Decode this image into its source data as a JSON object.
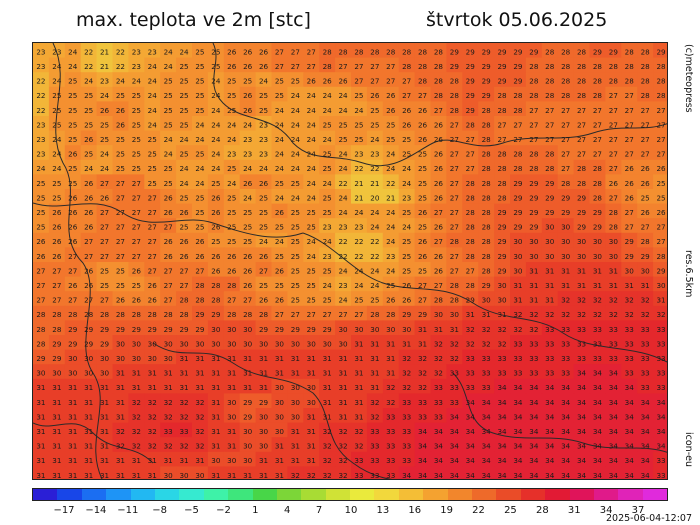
{
  "title": "max. teplota ve 2m [stc]",
  "date": "štvrtok 05.06.2025",
  "side_labels": {
    "copyright": "(c)meteopress",
    "resolution": "res.6.5km",
    "model": "icon-eu"
  },
  "timestamp": "2025-06-04-12:07",
  "map": {
    "cols": 40,
    "rows": 30,
    "grid_values": [
      [
        23,
        23,
        24,
        22,
        21,
        22,
        23,
        23,
        24,
        24,
        25,
        25,
        26,
        26,
        26,
        27,
        27,
        27,
        28,
        28,
        28,
        28,
        28,
        28,
        28,
        28,
        29,
        29,
        29,
        29,
        29,
        29,
        28,
        28,
        28,
        29,
        29,
        28,
        28,
        29
      ],
      [
        23,
        24,
        24,
        22,
        21,
        22,
        23,
        24,
        24,
        25,
        25,
        25,
        26,
        26,
        26,
        27,
        27,
        27,
        28,
        27,
        27,
        27,
        27,
        28,
        28,
        28,
        29,
        29,
        29,
        29,
        29,
        28,
        28,
        28,
        28,
        28,
        28,
        28,
        28,
        28
      ],
      [
        22,
        24,
        25,
        24,
        23,
        24,
        24,
        24,
        25,
        25,
        25,
        24,
        25,
        25,
        24,
        25,
        25,
        26,
        26,
        26,
        27,
        27,
        27,
        27,
        28,
        28,
        28,
        29,
        29,
        29,
        29,
        28,
        28,
        28,
        28,
        28,
        28,
        28,
        28,
        28
      ],
      [
        22,
        25,
        25,
        25,
        24,
        25,
        25,
        24,
        25,
        25,
        25,
        24,
        25,
        26,
        25,
        25,
        24,
        24,
        24,
        24,
        25,
        26,
        26,
        27,
        27,
        28,
        28,
        29,
        29,
        28,
        28,
        28,
        28,
        28,
        28,
        28,
        27,
        27,
        28,
        28
      ],
      [
        22,
        25,
        25,
        25,
        26,
        26,
        25,
        24,
        25,
        25,
        25,
        24,
        25,
        26,
        25,
        24,
        24,
        24,
        24,
        24,
        24,
        25,
        26,
        26,
        26,
        27,
        28,
        29,
        28,
        28,
        28,
        27,
        27,
        27,
        27,
        27,
        27,
        27,
        27,
        27
      ],
      [
        23,
        25,
        25,
        25,
        25,
        26,
        25,
        24,
        25,
        25,
        24,
        24,
        24,
        24,
        23,
        24,
        24,
        24,
        25,
        25,
        25,
        25,
        25,
        26,
        26,
        26,
        27,
        28,
        28,
        27,
        27,
        27,
        27,
        27,
        27,
        27,
        27,
        27,
        27,
        27
      ],
      [
        23,
        24,
        25,
        26,
        25,
        25,
        25,
        25,
        24,
        24,
        24,
        24,
        24,
        23,
        23,
        24,
        24,
        24,
        24,
        25,
        25,
        24,
        25,
        25,
        26,
        26,
        27,
        27,
        28,
        27,
        27,
        27,
        27,
        27,
        27,
        27,
        27,
        27,
        27,
        27
      ],
      [
        23,
        24,
        26,
        25,
        24,
        25,
        25,
        25,
        24,
        25,
        25,
        24,
        23,
        23,
        23,
        24,
        24,
        24,
        25,
        24,
        23,
        23,
        24,
        25,
        25,
        26,
        27,
        27,
        28,
        28,
        28,
        28,
        28,
        27,
        27,
        27,
        27,
        27,
        27,
        27
      ],
      [
        24,
        24,
        25,
        24,
        24,
        25,
        25,
        25,
        25,
        24,
        24,
        24,
        25,
        24,
        24,
        24,
        24,
        24,
        25,
        24,
        22,
        22,
        24,
        24,
        25,
        26,
        27,
        27,
        28,
        28,
        28,
        28,
        28,
        27,
        28,
        28,
        27,
        26,
        26,
        26
      ],
      [
        25,
        25,
        25,
        26,
        27,
        27,
        27,
        25,
        25,
        24,
        24,
        25,
        24,
        26,
        26,
        25,
        25,
        24,
        24,
        22,
        21,
        21,
        22,
        24,
        25,
        26,
        27,
        28,
        28,
        28,
        29,
        29,
        29,
        28,
        28,
        28,
        26,
        26,
        26,
        25
      ],
      [
        25,
        25,
        26,
        26,
        26,
        27,
        27,
        27,
        26,
        25,
        25,
        26,
        25,
        24,
        25,
        24,
        24,
        24,
        25,
        24,
        21,
        20,
        21,
        23,
        25,
        26,
        27,
        28,
        28,
        28,
        29,
        29,
        29,
        29,
        29,
        28,
        27,
        26,
        25,
        25
      ],
      [
        25,
        26,
        26,
        26,
        27,
        27,
        27,
        27,
        26,
        26,
        25,
        26,
        25,
        25,
        25,
        26,
        25,
        25,
        25,
        24,
        24,
        24,
        24,
        25,
        26,
        27,
        27,
        28,
        28,
        29,
        29,
        29,
        29,
        29,
        29,
        29,
        28,
        27,
        26,
        26
      ],
      [
        25,
        26,
        26,
        26,
        27,
        27,
        27,
        27,
        27,
        25,
        25,
        26,
        25,
        25,
        25,
        25,
        25,
        25,
        23,
        23,
        23,
        24,
        24,
        24,
        25,
        26,
        27,
        28,
        28,
        29,
        29,
        29,
        30,
        30,
        29,
        29,
        28,
        27,
        27,
        27
      ],
      [
        26,
        26,
        26,
        27,
        27,
        27,
        27,
        27,
        26,
        26,
        26,
        25,
        25,
        25,
        24,
        24,
        25,
        24,
        24,
        22,
        22,
        22,
        24,
        25,
        26,
        27,
        28,
        28,
        28,
        29,
        30,
        30,
        30,
        30,
        30,
        30,
        30,
        29,
        28,
        27
      ],
      [
        26,
        26,
        27,
        27,
        27,
        27,
        27,
        27,
        26,
        26,
        26,
        26,
        26,
        26,
        26,
        25,
        25,
        24,
        23,
        22,
        22,
        22,
        23,
        25,
        26,
        26,
        27,
        28,
        28,
        29,
        30,
        30,
        30,
        30,
        30,
        30,
        30,
        29,
        29,
        28
      ],
      [
        27,
        27,
        27,
        26,
        25,
        25,
        26,
        27,
        27,
        27,
        27,
        26,
        26,
        26,
        27,
        26,
        25,
        25,
        25,
        24,
        24,
        24,
        24,
        25,
        25,
        26,
        27,
        27,
        28,
        29,
        30,
        31,
        31,
        31,
        31,
        31,
        31,
        30,
        30,
        29
      ],
      [
        27,
        27,
        26,
        26,
        25,
        25,
        25,
        26,
        27,
        27,
        28,
        28,
        28,
        26,
        25,
        25,
        25,
        25,
        24,
        23,
        24,
        24,
        25,
        26,
        27,
        27,
        28,
        28,
        29,
        30,
        31,
        31,
        31,
        31,
        31,
        31,
        31,
        31,
        31,
        30
      ],
      [
        27,
        27,
        27,
        27,
        27,
        26,
        26,
        26,
        27,
        28,
        28,
        28,
        27,
        27,
        26,
        26,
        25,
        25,
        25,
        24,
        25,
        25,
        26,
        26,
        27,
        28,
        28,
        29,
        30,
        30,
        31,
        31,
        31,
        32,
        32,
        32,
        32,
        32,
        32,
        31
      ],
      [
        28,
        28,
        28,
        28,
        28,
        28,
        28,
        28,
        28,
        28,
        29,
        29,
        28,
        28,
        28,
        27,
        27,
        27,
        27,
        27,
        27,
        28,
        28,
        29,
        29,
        30,
        30,
        31,
        31,
        31,
        32,
        32,
        32,
        32,
        32,
        32,
        32,
        32,
        32,
        32
      ],
      [
        28,
        28,
        29,
        29,
        29,
        29,
        29,
        29,
        29,
        29,
        29,
        30,
        30,
        30,
        29,
        29,
        29,
        29,
        29,
        30,
        30,
        30,
        30,
        30,
        31,
        31,
        31,
        32,
        32,
        32,
        32,
        32,
        33,
        33,
        33,
        33,
        33,
        33,
        33,
        33
      ],
      [
        28,
        29,
        29,
        29,
        29,
        30,
        30,
        30,
        30,
        30,
        30,
        30,
        30,
        30,
        30,
        30,
        30,
        30,
        30,
        30,
        31,
        31,
        31,
        31,
        31,
        32,
        32,
        32,
        32,
        32,
        33,
        33,
        33,
        33,
        33,
        33,
        33,
        33,
        33,
        33
      ],
      [
        29,
        29,
        30,
        30,
        30,
        30,
        30,
        30,
        30,
        31,
        31,
        31,
        31,
        31,
        31,
        31,
        31,
        31,
        31,
        31,
        31,
        31,
        31,
        32,
        32,
        32,
        32,
        33,
        33,
        33,
        33,
        33,
        33,
        33,
        33,
        33,
        33,
        33,
        33,
        33
      ],
      [
        30,
        30,
        30,
        30,
        30,
        31,
        31,
        31,
        31,
        31,
        31,
        31,
        31,
        31,
        31,
        31,
        31,
        31,
        31,
        31,
        31,
        31,
        31,
        32,
        32,
        32,
        33,
        33,
        33,
        33,
        33,
        33,
        33,
        33,
        34,
        34,
        34,
        33,
        33,
        33
      ],
      [
        31,
        31,
        31,
        31,
        31,
        31,
        31,
        31,
        31,
        31,
        31,
        31,
        31,
        31,
        31,
        30,
        30,
        30,
        31,
        31,
        31,
        31,
        32,
        32,
        32,
        33,
        33,
        33,
        33,
        34,
        34,
        34,
        34,
        34,
        34,
        34,
        34,
        34,
        33,
        33
      ],
      [
        31,
        31,
        31,
        31,
        31,
        31,
        32,
        32,
        32,
        32,
        32,
        31,
        30,
        29,
        29,
        30,
        30,
        30,
        31,
        31,
        31,
        32,
        32,
        33,
        33,
        33,
        33,
        34,
        34,
        34,
        34,
        34,
        34,
        34,
        34,
        34,
        34,
        34,
        34,
        34
      ],
      [
        31,
        31,
        31,
        31,
        31,
        31,
        32,
        32,
        32,
        32,
        32,
        31,
        30,
        29,
        30,
        30,
        30,
        31,
        31,
        31,
        31,
        32,
        33,
        33,
        33,
        33,
        34,
        34,
        34,
        34,
        34,
        34,
        34,
        34,
        34,
        34,
        34,
        34,
        34,
        34
      ],
      [
        31,
        31,
        31,
        31,
        31,
        32,
        32,
        32,
        33,
        33,
        32,
        31,
        31,
        30,
        30,
        30,
        31,
        31,
        32,
        32,
        32,
        33,
        33,
        33,
        34,
        34,
        34,
        34,
        34,
        34,
        34,
        34,
        34,
        34,
        34,
        34,
        34,
        34,
        34,
        34
      ],
      [
        31,
        31,
        31,
        31,
        31,
        32,
        32,
        32,
        32,
        32,
        32,
        31,
        31,
        30,
        30,
        31,
        31,
        31,
        32,
        32,
        32,
        33,
        33,
        33,
        34,
        34,
        34,
        34,
        34,
        34,
        34,
        34,
        34,
        34,
        34,
        34,
        34,
        34,
        34,
        34
      ],
      [
        31,
        31,
        31,
        31,
        31,
        31,
        31,
        31,
        31,
        31,
        31,
        30,
        30,
        30,
        31,
        31,
        31,
        31,
        32,
        32,
        33,
        33,
        33,
        33,
        34,
        34,
        34,
        34,
        34,
        34,
        34,
        34,
        34,
        34,
        34,
        34,
        34,
        34,
        34,
        33
      ],
      [
        31,
        31,
        31,
        31,
        31,
        31,
        31,
        31,
        30,
        30,
        30,
        31,
        31,
        31,
        31,
        31,
        32,
        32,
        32,
        32,
        33,
        33,
        33,
        34,
        34,
        34,
        34,
        34,
        34,
        34,
        34,
        34,
        34,
        34,
        34,
        34,
        34,
        34,
        34,
        33
      ]
    ]
  },
  "colorbar": {
    "colors": [
      "#2a1fd6",
      "#1846e8",
      "#1b6ef2",
      "#1e94f6",
      "#22b8f2",
      "#2ad6e6",
      "#36ead0",
      "#3ef2a8",
      "#3ee67c",
      "#48d648",
      "#7cd638",
      "#a8dc34",
      "#d0e236",
      "#eaea3c",
      "#f2d83c",
      "#f4be36",
      "#f4a230",
      "#f2862c",
      "#ee6a2a",
      "#ea4c28",
      "#e6302a",
      "#e21a34",
      "#e0145a",
      "#e01a8a",
      "#e023b8",
      "#e02adc"
    ],
    "tick_labels": [
      "−17",
      "−14",
      "−11",
      "−8",
      "−5",
      "−2",
      "1",
      "4",
      "7",
      "10",
      "13",
      "16",
      "19",
      "22",
      "25",
      "28",
      "31",
      "34",
      "37"
    ]
  }
}
